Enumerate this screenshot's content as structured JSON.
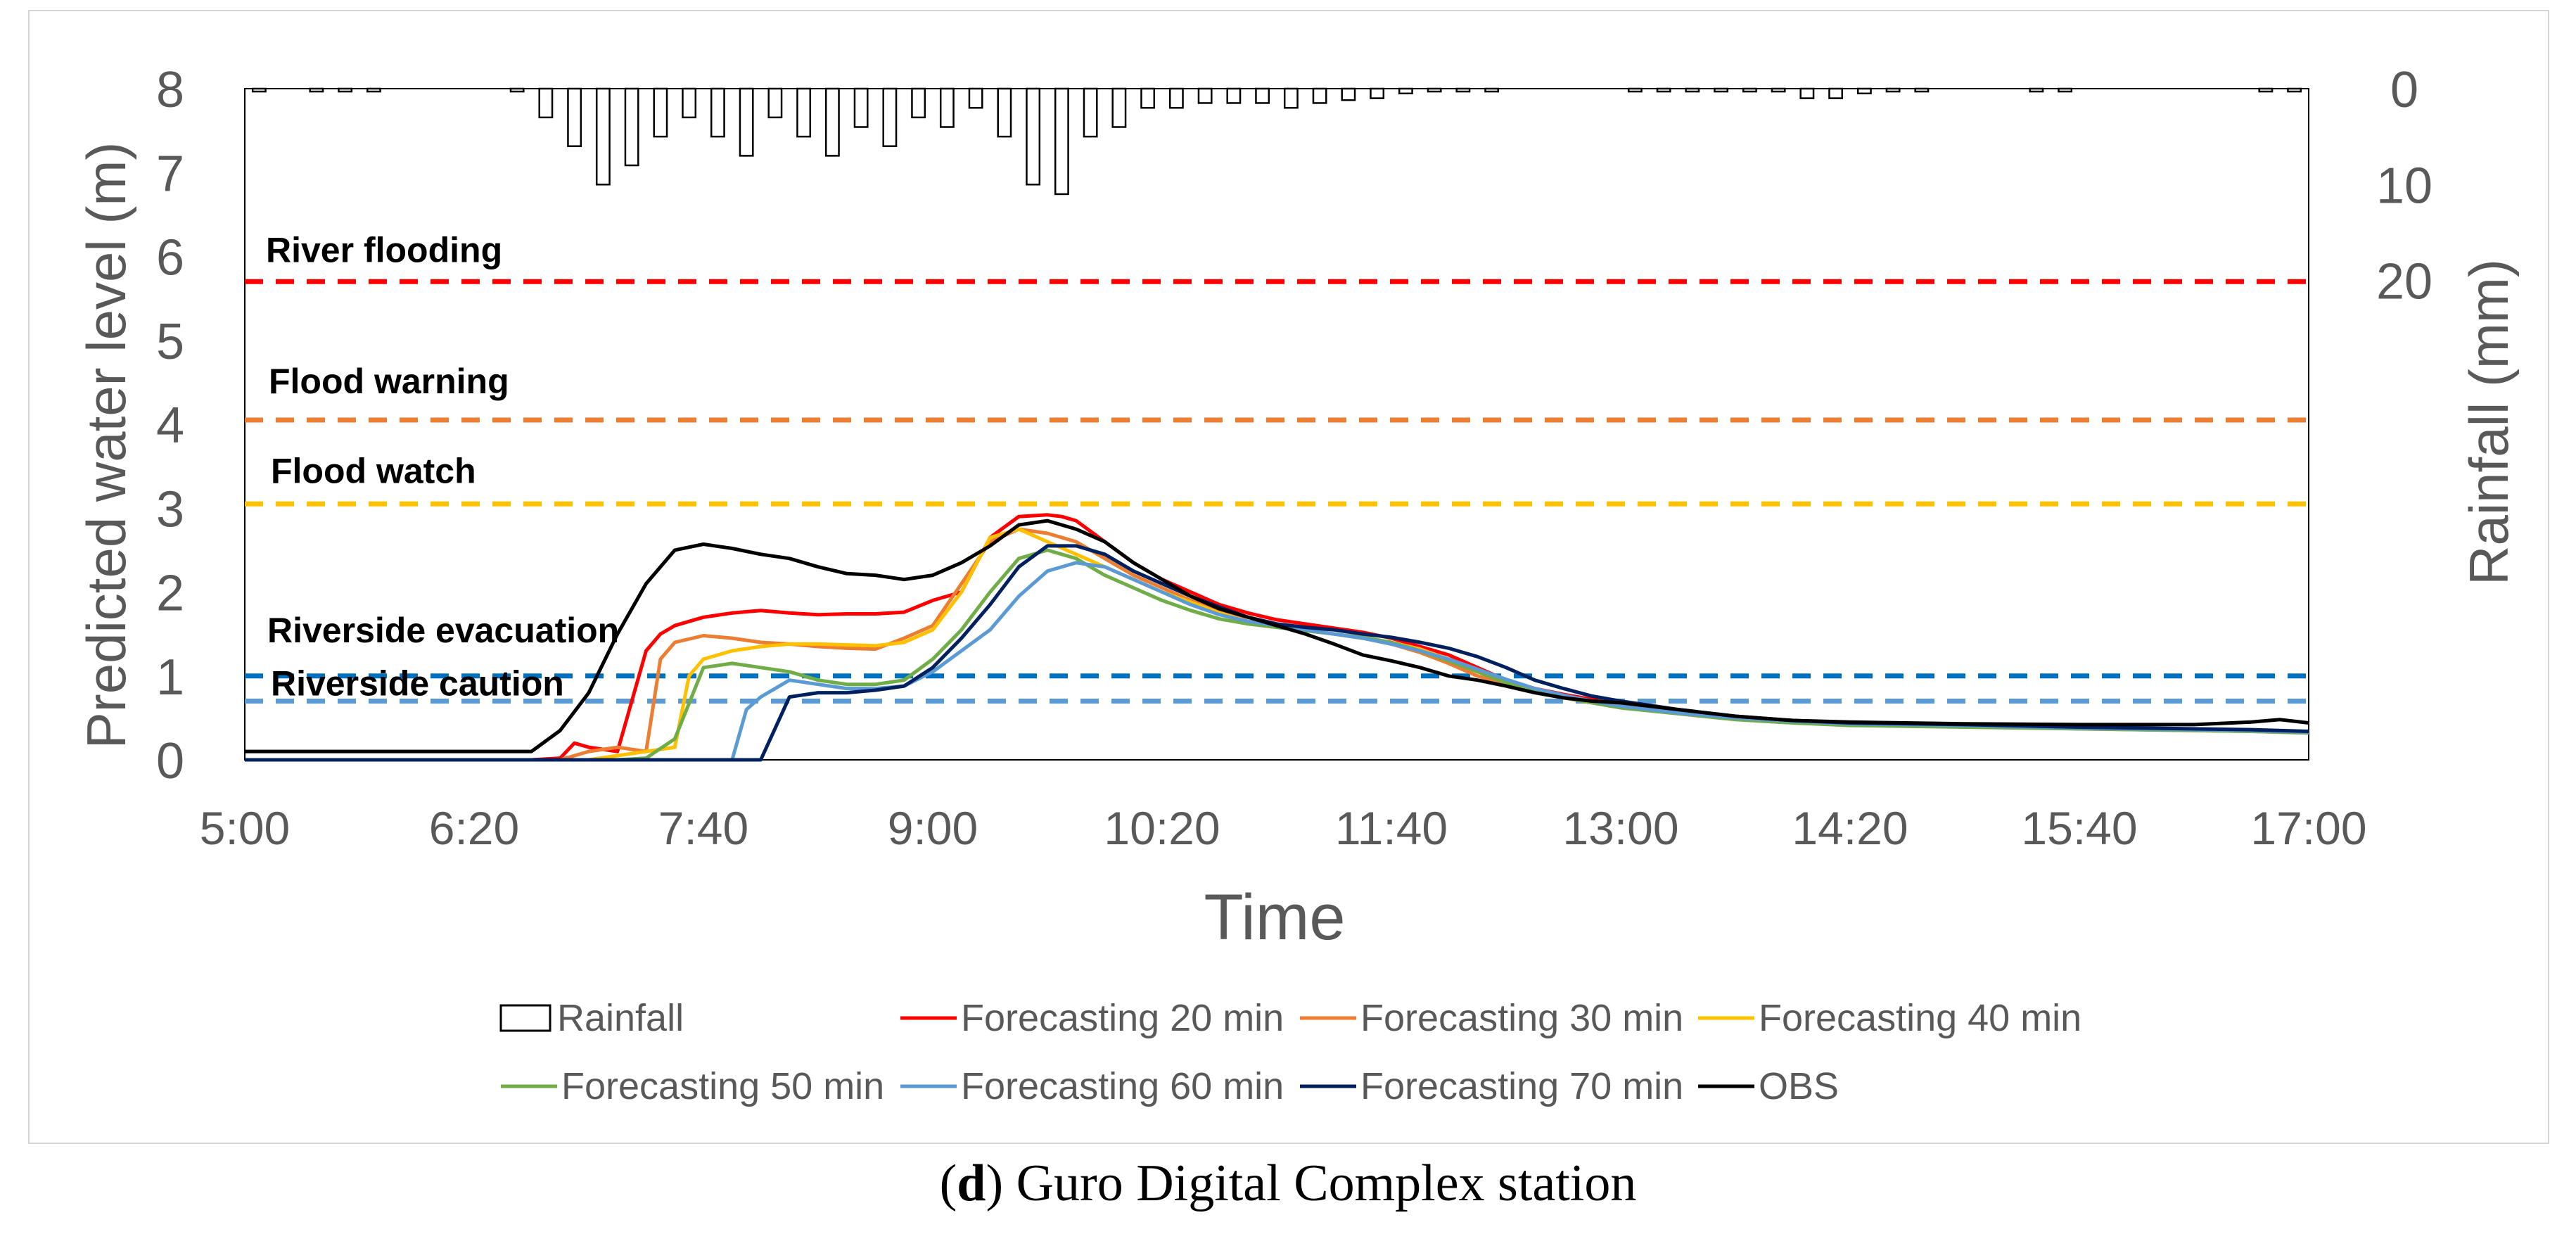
{
  "caption": {
    "open": "(",
    "letter": "d",
    "close": ")",
    "text": " Guro Digital Complex station"
  },
  "chart_data": {
    "type": "line",
    "title": "",
    "xlabel": "Time",
    "ylabel": "Predicted water level (m)",
    "y2label": "Rainfall (mm)",
    "ylim": [
      0,
      8
    ],
    "y2lim_inverted": [
      0,
      70
    ],
    "x_unit": "minutes since 5:00",
    "xlim": [
      0,
      720
    ],
    "x_ticks": [
      0,
      80,
      160,
      240,
      320,
      400,
      480,
      560,
      640,
      720
    ],
    "x_tick_labels": [
      "5:00",
      "6:20",
      "7:40",
      "9:00",
      "10:20",
      "11:40",
      "13:00",
      "14:20",
      "15:40",
      "17:00"
    ],
    "y_ticks": [
      0,
      1,
      2,
      3,
      4,
      5,
      6,
      7,
      8
    ],
    "y_tick_labels": [
      "0",
      "1",
      "2",
      "3",
      "4",
      "5",
      "6",
      "7",
      "8"
    ],
    "y2_ticks": [
      0,
      10,
      20
    ],
    "y2_tick_labels": [
      "0",
      "10",
      "20"
    ],
    "legend_position": "bottom",
    "thresholds": [
      {
        "name": "River flooding",
        "value": 5.7,
        "color": "#ff0000"
      },
      {
        "name": "Flood warning",
        "value": 4.05,
        "color": "#ed7d31"
      },
      {
        "name": "Flood watch",
        "value": 3.05,
        "color": "#ffc000"
      },
      {
        "name": "Riverside evacuation",
        "value": 1.0,
        "color": "#0070c0"
      },
      {
        "name": "Riverside caution",
        "value": 0.7,
        "color": "#5b9bd5"
      }
    ],
    "rainfall": {
      "name": "Rainfall",
      "step": 10,
      "x": [
        0,
        10,
        20,
        30,
        40,
        50,
        60,
        70,
        80,
        90,
        100,
        110,
        120,
        130,
        140,
        150,
        160,
        170,
        180,
        190,
        200,
        210,
        220,
        230,
        240,
        250,
        260,
        270,
        280,
        290,
        300,
        310,
        320,
        330,
        340,
        350,
        360,
        370,
        380,
        390,
        400,
        410,
        420,
        430,
        440,
        450,
        460,
        470,
        480,
        490,
        500,
        510,
        520,
        530,
        540,
        550,
        560,
        570,
        580,
        590,
        600,
        610,
        620,
        630,
        640,
        650,
        660,
        670,
        680,
        690,
        700,
        710
      ],
      "values": [
        0.3,
        0,
        0.3,
        0.3,
        0.3,
        0,
        0,
        0,
        0,
        0.3,
        3,
        6,
        10,
        8,
        5,
        3,
        5,
        7,
        3,
        5,
        7,
        4,
        6,
        3,
        4,
        2,
        5,
        10,
        11,
        5,
        4,
        2,
        2,
        1.5,
        1.5,
        1.5,
        2,
        1.5,
        1.2,
        1,
        0.5,
        0.3,
        0.3,
        0.3,
        0,
        0,
        0,
        0,
        0.3,
        0.3,
        0.3,
        0.3,
        0.3,
        0.3,
        1,
        1,
        0.5,
        0.3,
        0.3,
        0,
        0,
        0,
        0.3,
        0.3,
        0,
        0,
        0,
        0,
        0,
        0,
        0.3,
        0.3
      ]
    },
    "series": [
      {
        "name": "Forecasting 20 min",
        "color": "#ff0000",
        "x": [
          0,
          100,
          110,
          115,
          120,
          130,
          140,
          145,
          150,
          160,
          170,
          180,
          190,
          200,
          210,
          220,
          230,
          240,
          250,
          260,
          270,
          280,
          285,
          290,
          300,
          310,
          320,
          330,
          340,
          350,
          360,
          370,
          380,
          390,
          400,
          410,
          420,
          430,
          440,
          450,
          460,
          470,
          480,
          500,
          520,
          540,
          560,
          600,
          640,
          700,
          720
        ],
        "y": [
          0,
          0,
          0.02,
          0.2,
          0.15,
          0.1,
          1.3,
          1.5,
          1.6,
          1.7,
          1.75,
          1.78,
          1.75,
          1.73,
          1.74,
          1.74,
          1.76,
          1.9,
          2.0,
          2.65,
          2.9,
          2.92,
          2.9,
          2.85,
          2.6,
          2.35,
          2.15,
          2.0,
          1.85,
          1.75,
          1.67,
          1.62,
          1.57,
          1.52,
          1.45,
          1.35,
          1.25,
          1.1,
          0.95,
          0.85,
          0.78,
          0.72,
          0.65,
          0.58,
          0.51,
          0.46,
          0.43,
          0.4,
          0.38,
          0.35,
          0.33
        ]
      },
      {
        "name": "Forecasting 30 min",
        "color": "#ed7d31",
        "x": [
          0,
          110,
          120,
          130,
          140,
          145,
          150,
          160,
          170,
          180,
          190,
          200,
          210,
          220,
          230,
          240,
          250,
          260,
          270,
          280,
          290,
          300,
          310,
          320,
          330,
          340,
          350,
          360,
          370,
          380,
          390,
          400,
          410,
          420,
          430,
          440,
          450,
          460,
          470,
          480,
          500,
          520,
          540,
          560,
          600,
          640,
          700,
          720
        ],
        "y": [
          0,
          0,
          0.1,
          0.15,
          0.1,
          1.2,
          1.4,
          1.48,
          1.45,
          1.4,
          1.38,
          1.35,
          1.33,
          1.32,
          1.45,
          1.6,
          2.1,
          2.6,
          2.75,
          2.7,
          2.6,
          2.4,
          2.2,
          2.05,
          1.9,
          1.78,
          1.65,
          1.6,
          1.55,
          1.5,
          1.45,
          1.38,
          1.28,
          1.15,
          1.0,
          0.9,
          0.8,
          0.74,
          0.68,
          0.64,
          0.57,
          0.5,
          0.45,
          0.42,
          0.4,
          0.37,
          0.34,
          0.32
        ]
      },
      {
        "name": "Forecasting 40 min",
        "color": "#ffc000",
        "x": [
          0,
          120,
          130,
          140,
          150,
          155,
          160,
          170,
          180,
          190,
          200,
          210,
          220,
          230,
          240,
          250,
          260,
          270,
          280,
          290,
          300,
          310,
          320,
          330,
          340,
          350,
          360,
          370,
          380,
          390,
          400,
          410,
          420,
          430,
          440,
          450,
          460,
          470,
          480,
          500,
          520,
          540,
          560,
          600,
          640,
          700,
          720
        ],
        "y": [
          0,
          0,
          0.05,
          0.1,
          0.15,
          1.0,
          1.2,
          1.3,
          1.35,
          1.38,
          1.38,
          1.37,
          1.36,
          1.4,
          1.55,
          2.0,
          2.65,
          2.75,
          2.6,
          2.45,
          2.3,
          2.15,
          2.0,
          1.88,
          1.75,
          1.65,
          1.6,
          1.55,
          1.5,
          1.45,
          1.4,
          1.32,
          1.2,
          1.08,
          0.95,
          0.85,
          0.76,
          0.7,
          0.65,
          0.57,
          0.5,
          0.46,
          0.43,
          0.41,
          0.38,
          0.35,
          0.33
        ]
      },
      {
        "name": "Forecasting 50 min",
        "color": "#70ad47",
        "x": [
          0,
          130,
          140,
          150,
          160,
          170,
          180,
          190,
          200,
          210,
          220,
          230,
          240,
          250,
          260,
          270,
          280,
          290,
          300,
          310,
          320,
          330,
          340,
          350,
          360,
          370,
          380,
          390,
          400,
          410,
          420,
          430,
          440,
          450,
          460,
          470,
          480,
          500,
          520,
          540,
          560,
          600,
          640,
          700,
          720
        ],
        "y": [
          0,
          0,
          0.02,
          0.25,
          1.1,
          1.15,
          1.1,
          1.05,
          0.95,
          0.9,
          0.9,
          0.95,
          1.2,
          1.55,
          2.0,
          2.4,
          2.5,
          2.4,
          2.2,
          2.05,
          1.9,
          1.78,
          1.68,
          1.62,
          1.58,
          1.54,
          1.5,
          1.46,
          1.4,
          1.3,
          1.18,
          1.05,
          0.92,
          0.82,
          0.74,
          0.68,
          0.62,
          0.55,
          0.48,
          0.44,
          0.41,
          0.39,
          0.37,
          0.34,
          0.32
        ]
      },
      {
        "name": "Forecasting 60 min",
        "color": "#5b9bd5",
        "x": [
          0,
          170,
          175,
          180,
          190,
          200,
          210,
          220,
          230,
          240,
          250,
          260,
          270,
          280,
          290,
          300,
          310,
          320,
          330,
          340,
          350,
          360,
          370,
          380,
          390,
          400,
          410,
          420,
          430,
          440,
          450,
          460,
          470,
          480,
          500,
          520,
          540,
          560,
          600,
          640,
          700,
          720
        ],
        "y": [
          0,
          0,
          0.6,
          0.75,
          0.95,
          0.9,
          0.85,
          0.85,
          0.88,
          1.05,
          1.3,
          1.55,
          1.95,
          2.25,
          2.35,
          2.3,
          2.15,
          2.0,
          1.85,
          1.73,
          1.65,
          1.6,
          1.55,
          1.5,
          1.45,
          1.38,
          1.3,
          1.2,
          1.08,
          0.96,
          0.85,
          0.77,
          0.7,
          0.64,
          0.56,
          0.5,
          0.46,
          0.43,
          0.41,
          0.38,
          0.35,
          0.33
        ]
      },
      {
        "name": "Forecasting 70 min",
        "color": "#002060",
        "x": [
          0,
          180,
          190,
          200,
          210,
          220,
          230,
          240,
          250,
          260,
          270,
          280,
          290,
          300,
          310,
          320,
          330,
          340,
          350,
          360,
          370,
          380,
          390,
          400,
          410,
          420,
          430,
          440,
          450,
          460,
          470,
          480,
          500,
          520,
          540,
          560,
          600,
          640,
          700,
          720
        ],
        "y": [
          0,
          0,
          0.75,
          0.8,
          0.8,
          0.83,
          0.88,
          1.1,
          1.45,
          1.85,
          2.3,
          2.55,
          2.55,
          2.45,
          2.25,
          2.1,
          1.95,
          1.82,
          1.7,
          1.62,
          1.58,
          1.55,
          1.5,
          1.46,
          1.4,
          1.33,
          1.23,
          1.1,
          0.95,
          0.85,
          0.76,
          0.7,
          0.6,
          0.52,
          0.47,
          0.44,
          0.42,
          0.39,
          0.36,
          0.34
        ]
      },
      {
        "name": "OBS",
        "color": "#000000",
        "x": [
          0,
          20,
          40,
          60,
          80,
          100,
          110,
          120,
          130,
          140,
          150,
          160,
          170,
          180,
          190,
          200,
          210,
          220,
          230,
          240,
          250,
          260,
          270,
          280,
          290,
          300,
          310,
          320,
          330,
          340,
          350,
          360,
          370,
          380,
          390,
          400,
          410,
          420,
          430,
          440,
          450,
          460,
          470,
          480,
          500,
          520,
          540,
          560,
          600,
          640,
          680,
          700,
          710,
          720
        ],
        "y": [
          0.1,
          0.1,
          0.1,
          0.1,
          0.1,
          0.1,
          0.35,
          0.8,
          1.5,
          2.1,
          2.5,
          2.57,
          2.52,
          2.45,
          2.4,
          2.3,
          2.22,
          2.2,
          2.15,
          2.2,
          2.35,
          2.55,
          2.8,
          2.85,
          2.75,
          2.6,
          2.35,
          2.15,
          1.95,
          1.8,
          1.7,
          1.6,
          1.5,
          1.38,
          1.25,
          1.18,
          1.1,
          1.0,
          0.95,
          0.88,
          0.8,
          0.74,
          0.7,
          0.68,
          0.6,
          0.52,
          0.47,
          0.45,
          0.43,
          0.42,
          0.42,
          0.45,
          0.48,
          0.44
        ]
      }
    ]
  }
}
